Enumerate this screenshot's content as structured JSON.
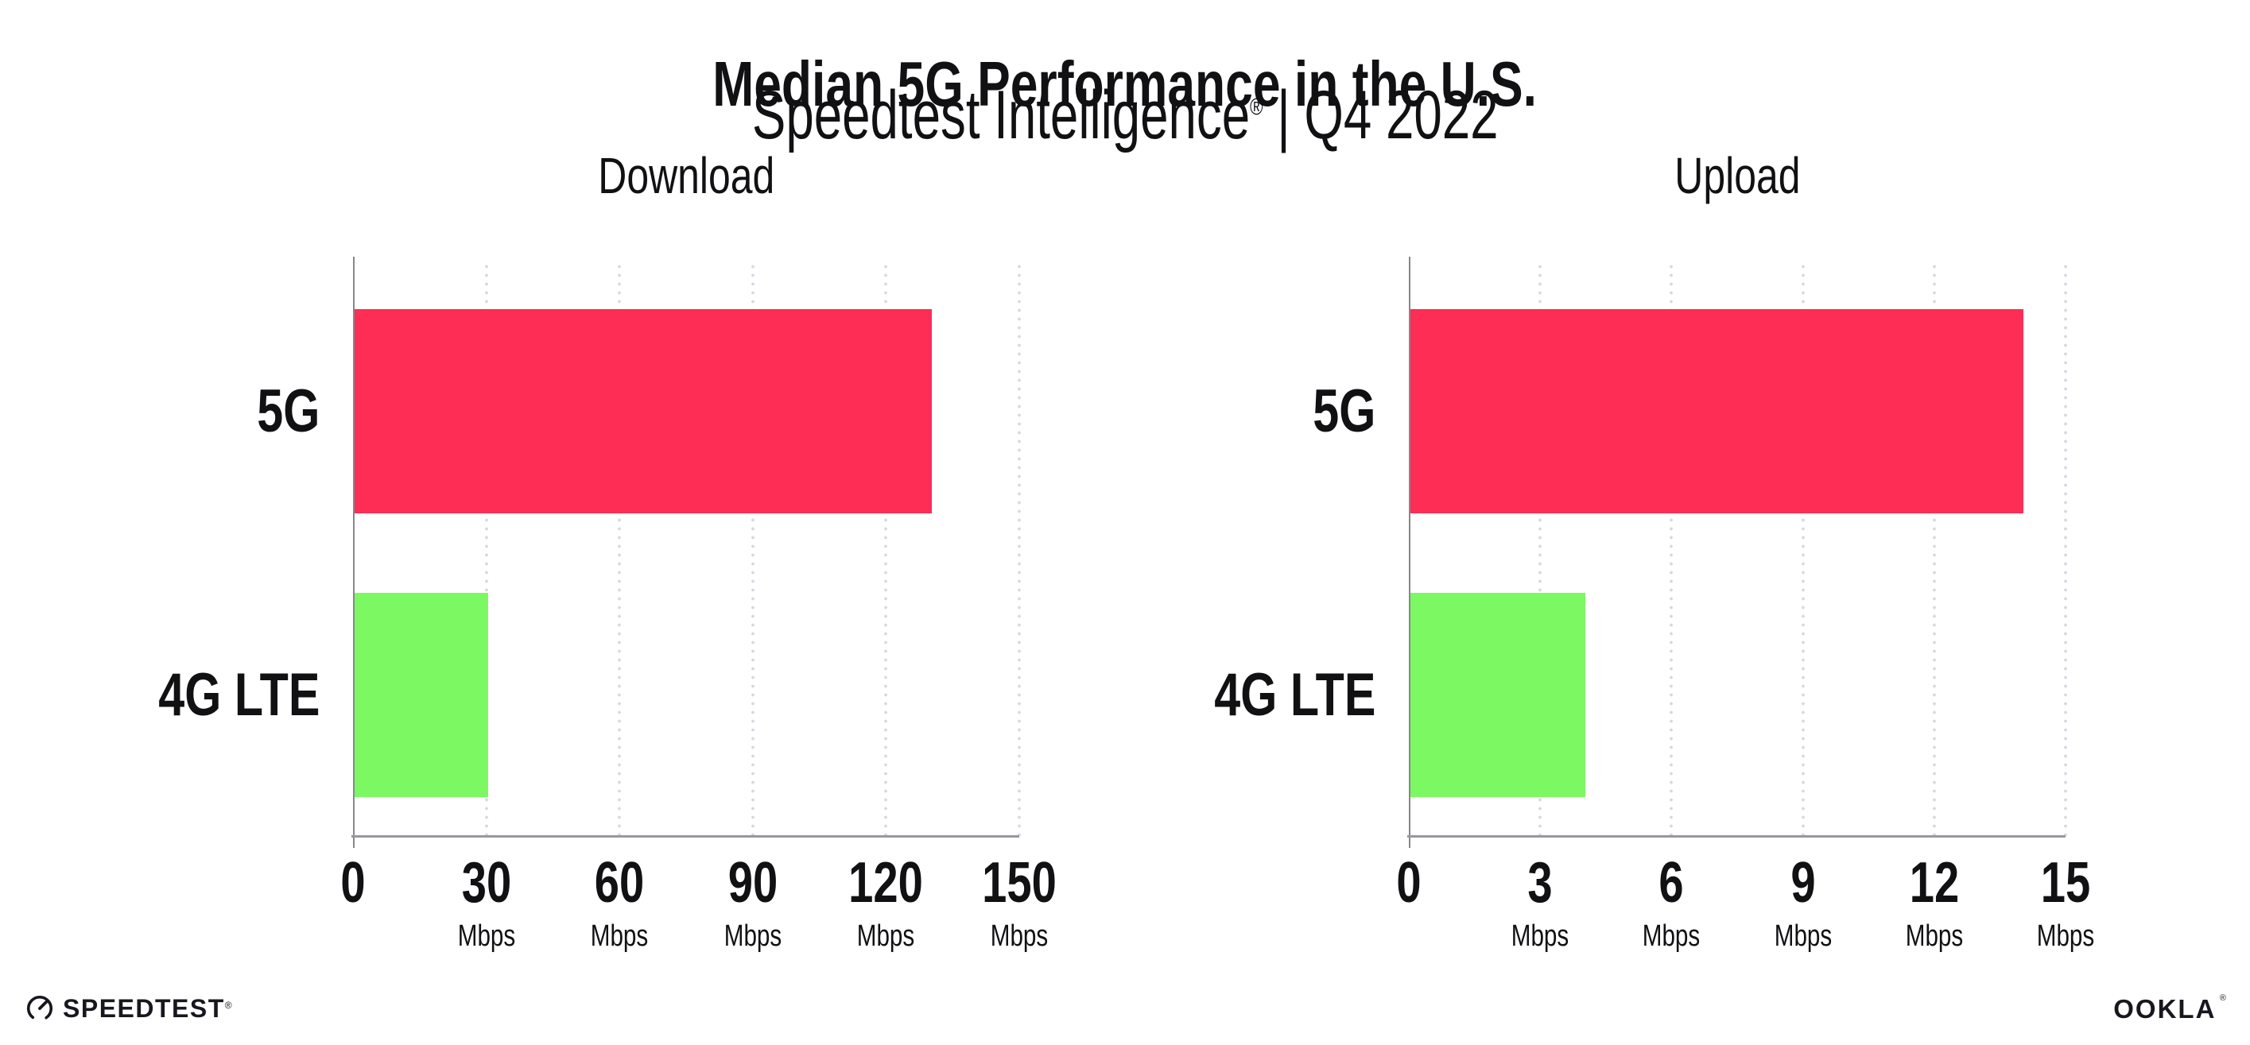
{
  "header": {
    "title": "Median 5G Performance in the U.S.",
    "subtitle_brand": "Speedtest Intelligence",
    "subtitle_reg": "®",
    "subtitle_sep": " | ",
    "subtitle_period": "Q4 2022"
  },
  "chart_data": [
    {
      "type": "bar",
      "orientation": "horizontal",
      "title": "Download",
      "unit": "Mbps",
      "categories": [
        "5G",
        "4G LTE"
      ],
      "values": [
        130,
        30
      ],
      "xlim": [
        0,
        150
      ],
      "xticks": [
        0,
        30,
        60,
        90,
        120,
        150
      ],
      "bar_colors": [
        "#fd2d55",
        "#7cf962"
      ],
      "grid": "dotted vertical gridlines at each tick",
      "legend": "none"
    },
    {
      "type": "bar",
      "orientation": "horizontal",
      "title": "Upload",
      "unit": "Mbps",
      "categories": [
        "5G",
        "4G LTE"
      ],
      "values": [
        14,
        4
      ],
      "xlim": [
        0,
        15
      ],
      "xticks": [
        0,
        3,
        6,
        9,
        12,
        15
      ],
      "bar_colors": [
        "#fd2d55",
        "#7cf962"
      ],
      "grid": "dotted vertical gridlines at each tick",
      "legend": "none"
    }
  ],
  "colors": {
    "accent_pink": "#fd2d55",
    "accent_green": "#7cf962",
    "axis": "#97979f",
    "grid_dot": "#d8d8e2",
    "text": "#111114",
    "logo": "#17171f"
  },
  "footer": {
    "speedtest_label": "SPEEDTEST",
    "speedtest_mark": "®",
    "ookla_label": "OOKLA",
    "ookla_mark": "®"
  }
}
